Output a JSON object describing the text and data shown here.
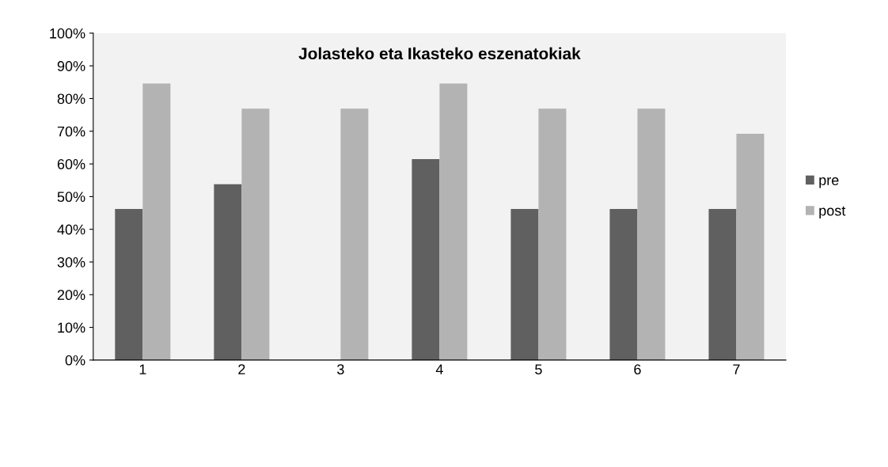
{
  "chart_data": {
    "type": "bar",
    "title": "Jolasteko eta Ikasteko eszenatokiak",
    "categories": [
      "1",
      "2",
      "3",
      "4",
      "5",
      "6",
      "7"
    ],
    "series": [
      {
        "name": "pre",
        "color": "#606060",
        "values": [
          46.2,
          53.8,
          0,
          61.5,
          46.2,
          46.2,
          46.2
        ]
      },
      {
        "name": "post",
        "color": "#b3b3b3",
        "values": [
          84.6,
          76.9,
          76.9,
          84.6,
          76.9,
          76.9,
          69.2
        ]
      }
    ],
    "ylim": [
      0,
      100
    ],
    "yticks": [
      {
        "value": 0,
        "label": "0%"
      },
      {
        "value": 10,
        "label": "10%"
      },
      {
        "value": 20,
        "label": "20%"
      },
      {
        "value": 30,
        "label": "30%"
      },
      {
        "value": 40,
        "label": "40%"
      },
      {
        "value": 50,
        "label": "50%"
      },
      {
        "value": 60,
        "label": "60%"
      },
      {
        "value": 70,
        "label": "70%"
      },
      {
        "value": 80,
        "label": "80%"
      },
      {
        "value": 90,
        "label": "90%"
      },
      {
        "value": 100,
        "label": "100%"
      }
    ],
    "grid": false,
    "legend": "right"
  }
}
